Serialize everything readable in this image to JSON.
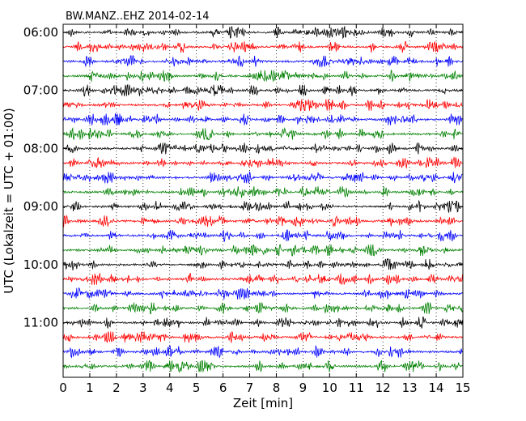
{
  "chart_data": {
    "type": "line",
    "title": "BW.MANZ..EHZ 2014-02-14",
    "xlabel": "Zeit  [min]",
    "ylabel": "UTC (Lokalzeit = UTC + 01:00)",
    "xlim": [
      0,
      15
    ],
    "x_ticks": [
      "0",
      "1",
      "2",
      "3",
      "4",
      "5",
      "6",
      "7",
      "8",
      "9",
      "10",
      "11",
      "12",
      "13",
      "14",
      "15"
    ],
    "y_ticks": [
      "06:00",
      "07:00",
      "08:00",
      "09:00",
      "10:00",
      "11:00"
    ],
    "grid": "vertical dotted lines at each minute",
    "trace_colors": [
      "#000000",
      "#ff0000",
      "#0000ff",
      "#008000"
    ],
    "trace_start_times": [
      "06:00",
      "06:15",
      "06:30",
      "06:45",
      "07:00",
      "07:15",
      "07:30",
      "07:45",
      "08:00",
      "08:15",
      "08:30",
      "08:45",
      "09:00",
      "09:15",
      "09:30",
      "09:45",
      "10:00",
      "10:15",
      "10:30",
      "10:45",
      "11:00",
      "11:15",
      "11:30",
      "11:45"
    ],
    "trace_minutes_per_line": 15
  }
}
